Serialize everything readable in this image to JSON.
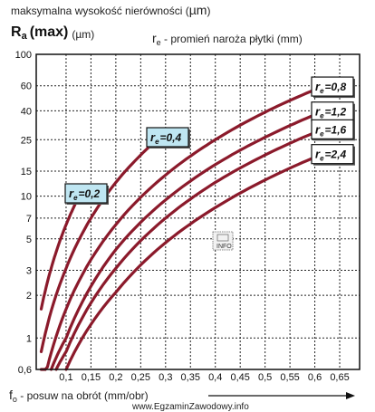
{
  "chart_data": {
    "type": "line",
    "header_line1": "maksymalna wysokość nierówności (",
    "header_mu": "µm",
    "header_close": ")",
    "ylabel_main": "R",
    "ylabel_sub": "a",
    "ylabel_max": "(max)",
    "ylabel_unit": "(µm)",
    "legend_title_r": "r",
    "legend_title_sub": "e",
    "legend_title_rest": " - promień naroża płytki (mm)",
    "xlabel_f": "f",
    "xlabel_sub": "o",
    "xlabel_rest": " - posuw na obrót (mm/obr)",
    "y_ticks": [
      "100",
      "60",
      "40",
      "25",
      "15",
      "10",
      "7",
      "5",
      "3",
      "2",
      "1",
      "0,6"
    ],
    "y_tick_values": [
      100,
      60,
      40,
      25,
      15,
      10,
      7,
      5,
      3,
      2,
      1,
      0.6
    ],
    "x_ticks": [
      "0,1",
      "0,15",
      "0,2",
      "0,25",
      "0,3",
      "0,35",
      "0,4",
      "0,45",
      "0,5",
      "0,55",
      "0,6",
      "0,65"
    ],
    "x_tick_values": [
      0.1,
      0.15,
      0.2,
      0.25,
      0.3,
      0.35,
      0.4,
      0.45,
      0.5,
      0.55,
      0.6,
      0.65
    ],
    "xlim": [
      0.04,
      0.69
    ],
    "ylim": [
      0.6,
      100
    ],
    "y_scale": "log",
    "grid": true,
    "series": [
      {
        "name": "r=0,2",
        "radius": "0,2",
        "x": [
          0.05,
          0.07,
          0.09,
          0.11,
          0.13
        ],
        "y": [
          1.6,
          3.1,
          5.1,
          7.6,
          10.6
        ],
        "label_style": "highlighted"
      },
      {
        "name": "r=0,4",
        "radius": "0,4",
        "x": [
          0.05,
          0.1,
          0.15,
          0.2,
          0.25,
          0.3
        ],
        "y": [
          0.8,
          3.1,
          7.0,
          12.5,
          19.5,
          28.1
        ],
        "label_style": "highlighted"
      },
      {
        "name": "r=0,8",
        "radius": "0,8",
        "x": [
          0.05,
          0.1,
          0.2,
          0.3,
          0.4,
          0.5,
          0.6
        ],
        "y": [
          0.4,
          1.6,
          6.3,
          14.1,
          25.0,
          39.1,
          56.3
        ],
        "label_style": "plain"
      },
      {
        "name": "r=1,2",
        "radius": "1,2",
        "x": [
          0.07,
          0.1,
          0.2,
          0.3,
          0.4,
          0.5,
          0.6
        ],
        "y": [
          0.6,
          1.0,
          4.2,
          9.4,
          16.7,
          26.0,
          37.5
        ],
        "label_style": "plain"
      },
      {
        "name": "r=1,6",
        "radius": "1,6",
        "x": [
          0.08,
          0.1,
          0.2,
          0.3,
          0.4,
          0.5,
          0.6
        ],
        "y": [
          0.6,
          0.8,
          3.1,
          7.0,
          12.5,
          19.5,
          28.1
        ],
        "label_style": "plain"
      },
      {
        "name": "r=2,4",
        "radius": "2,4",
        "x": [
          0.1,
          0.2,
          0.3,
          0.4,
          0.5,
          0.6
        ],
        "y": [
          0.6,
          2.1,
          4.7,
          8.3,
          13.0,
          18.8
        ],
        "label_style": "plain"
      }
    ],
    "curve_color": "#8b1a2b"
  },
  "watermark": "www.EgzaminZawodowy.info",
  "info_icon_text": "INFO"
}
